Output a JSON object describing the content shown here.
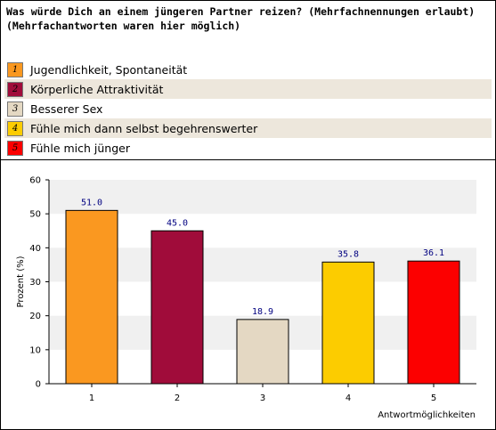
{
  "question": {
    "line1": "Was würde Dich an einem jüngeren Partner reizen? (Mehrfachnennungen erlaubt)",
    "line2": "(Mehrfachantworten waren hier möglich)"
  },
  "legend": [
    {
      "num": "1",
      "label": "Jugendlichkeit, Spontaneität",
      "color": "#fa9820"
    },
    {
      "num": "2",
      "label": "Körperliche Attraktivität",
      "color": "#a00c3a"
    },
    {
      "num": "3",
      "label": "Besserer Sex",
      "color": "#e4d8c3"
    },
    {
      "num": "4",
      "label": "Fühle mich dann selbst begehrenswerter",
      "color": "#fccc00"
    },
    {
      "num": "5",
      "label": "Fühle mich jünger",
      "color": "#fc0000"
    }
  ],
  "chart_data": {
    "type": "bar",
    "categories": [
      "1",
      "2",
      "3",
      "4",
      "5"
    ],
    "values": [
      51.0,
      45.0,
      18.9,
      35.8,
      36.1
    ],
    "value_labels": [
      "51.0",
      "45.0",
      "18.9",
      "35.8",
      "36.1"
    ],
    "colors": [
      "#fa9820",
      "#a00c3a",
      "#e4d8c3",
      "#fccc00",
      "#fc0000"
    ],
    "yticks": [
      "0",
      "10",
      "20",
      "30",
      "40",
      "50",
      "60"
    ],
    "ylim": [
      0,
      60
    ],
    "ylabel": "Prozent (%)",
    "xlabel": "Antwortmöglichkeiten",
    "grid": "alternating horizontal bands",
    "legend": "above chart"
  }
}
